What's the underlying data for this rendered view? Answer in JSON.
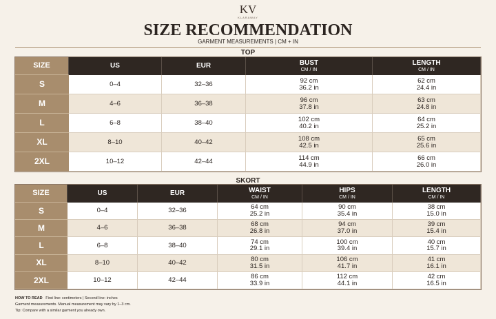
{
  "header": {
    "logo": "KV",
    "brand": "KLARAWAY",
    "title": "SIZE RECOMMENDATION",
    "subtitle": "GARMENT MEASUREMENTS | CM + IN"
  },
  "tables": [
    {
      "label": "TOP",
      "headers": [
        "SIZE",
        "US",
        "EUR",
        {
          "title": "BUST",
          "sub": "CM / IN"
        },
        {
          "title": "LENGTH",
          "sub": "CM / IN"
        }
      ],
      "rows": [
        [
          "S",
          "0–4",
          "32–36",
          [
            "92 cm",
            "36.2 in"
          ],
          [
            "62 cm",
            "24.4 in"
          ]
        ],
        [
          "M",
          "4–6",
          "36–38",
          [
            "96 cm",
            "37.8 in"
          ],
          [
            "63 cm",
            "24.8 in"
          ]
        ],
        [
          "L",
          "6–8",
          "38–40",
          [
            "102 cm",
            "40.2 in"
          ],
          [
            "64 cm",
            "25.2 in"
          ]
        ],
        [
          "XL",
          "8–10",
          "40–42",
          [
            "108 cm",
            "42.5 in"
          ],
          [
            "65 cm",
            "25.6 in"
          ]
        ],
        [
          "2XL",
          "10–12",
          "42–44",
          [
            "114 cm",
            "44.9 in"
          ],
          [
            "66 cm",
            "26.0 in"
          ]
        ]
      ]
    },
    {
      "label": "SKORT",
      "headers": [
        "SIZE",
        "US",
        "EUR",
        {
          "title": "WAIST",
          "sub": "CM / IN"
        },
        {
          "title": "HIPS",
          "sub": "CM / IN"
        },
        {
          "title": "LENGTH",
          "sub": "CM / IN"
        }
      ],
      "rows": [
        [
          "S",
          "0–4",
          "32–36",
          [
            "64 cm",
            "25.2 in"
          ],
          [
            "90 cm",
            "35.4 in"
          ],
          [
            "38 cm",
            "15.0 in"
          ]
        ],
        [
          "M",
          "4–6",
          "36–38",
          [
            "68 cm",
            "26.8 in"
          ],
          [
            "94 cm",
            "37.0 in"
          ],
          [
            "39 cm",
            "15.4 in"
          ]
        ],
        [
          "L",
          "6–8",
          "38–40",
          [
            "74 cm",
            "29.1 in"
          ],
          [
            "100 cm",
            "39.4 in"
          ],
          [
            "40 cm",
            "15.7 in"
          ]
        ],
        [
          "XL",
          "8–10",
          "40–42",
          [
            "80 cm",
            "31.5 in"
          ],
          [
            "106 cm",
            "41.7 in"
          ],
          [
            "41 cm",
            "16.1 in"
          ]
        ],
        [
          "2XL",
          "10–12",
          "42–44",
          [
            "86 cm",
            "33.9 in"
          ],
          [
            "112 cm",
            "44.1 in"
          ],
          [
            "42 cm",
            "16.5 in"
          ]
        ]
      ]
    }
  ],
  "footer": {
    "how_to_read": "HOW TO READ",
    "line1": "First line: centimeters  |  Second line: inches",
    "line2": "Garment measurements. Manual measurement may vary by 1–3 cm.",
    "line3": "Tip: Compare with a similar garment you already own."
  }
}
